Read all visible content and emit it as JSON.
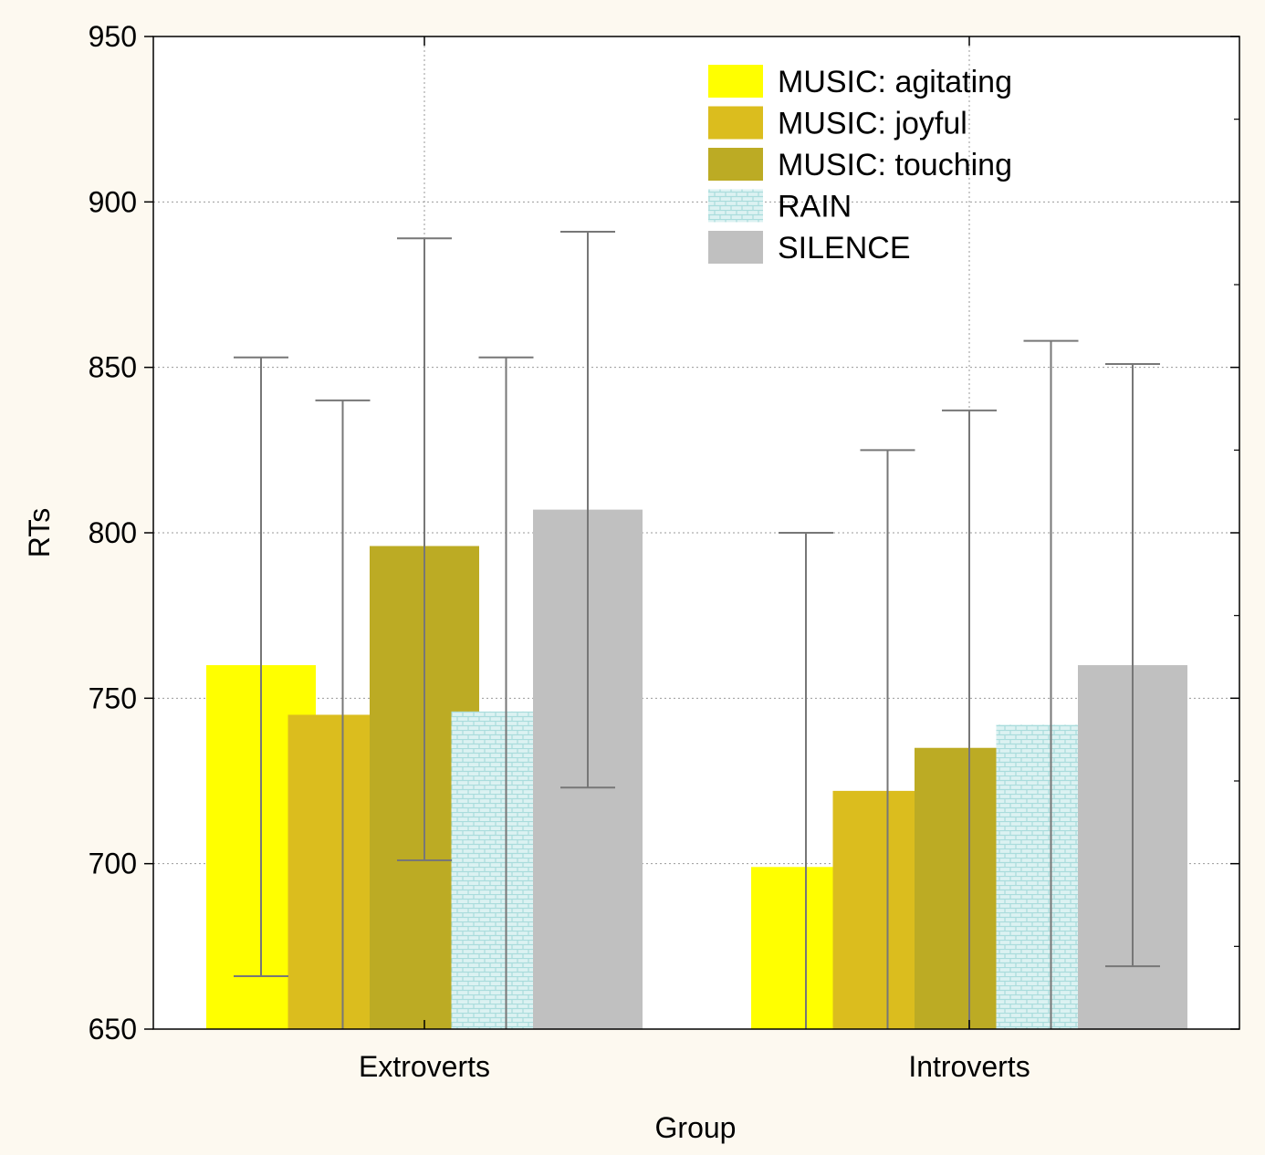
{
  "chart_data": {
    "type": "bar",
    "title": "",
    "xlabel": "Group",
    "ylabel": "RTs",
    "ylim": [
      650,
      950
    ],
    "yticks": [
      650,
      700,
      750,
      800,
      850,
      900,
      950
    ],
    "categories": [
      "Extroverts",
      "Introverts"
    ],
    "grid": true,
    "legend_position": "top-right",
    "series": [
      {
        "name": "MUSIC: agitating",
        "color": "#ffff00",
        "pattern": "solid",
        "values": [
          760,
          699
        ],
        "err_low": [
          666,
          650
        ],
        "err_high": [
          853,
          800
        ]
      },
      {
        "name": "MUSIC: joyful",
        "color": "#dbbd1e",
        "pattern": "solid",
        "values": [
          745,
          722
        ],
        "err_low": [
          650,
          650
        ],
        "err_high": [
          840,
          825
        ]
      },
      {
        "name": "MUSIC: touching",
        "color": "#bcab24",
        "pattern": "solid",
        "values": [
          796,
          735
        ],
        "err_low": [
          701,
          650
        ],
        "err_high": [
          889,
          837
        ]
      },
      {
        "name": "RAIN",
        "color": "#dcf2f2",
        "pattern": "brick",
        "values": [
          746,
          742
        ],
        "err_low": [
          650,
          650
        ],
        "err_high": [
          853,
          858
        ]
      },
      {
        "name": "SILENCE",
        "color": "#c0c0c0",
        "pattern": "solid",
        "values": [
          807,
          760
        ],
        "err_low": [
          723,
          669
        ],
        "err_high": [
          891,
          851
        ]
      }
    ]
  }
}
